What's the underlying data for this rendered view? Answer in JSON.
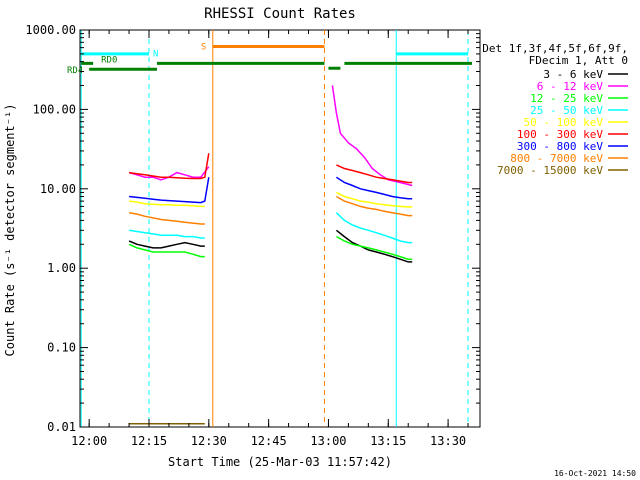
{
  "chart_data": {
    "type": "line",
    "title": "RHESSI Count Rates",
    "xlabel": "Start Time (25-Mar-03 11:57:42)",
    "ylabel": "Count Rate (s⁻¹ detector segment⁻¹)",
    "y_scale": "log",
    "ylim": [
      0.01,
      1000
    ],
    "xlim": [
      "11:57:42",
      "13:38:00"
    ],
    "x_ticks": [
      "12:00",
      "12:15",
      "12:30",
      "12:45",
      "13:00",
      "13:15",
      "13:30"
    ],
    "y_ticks": [
      "0.01",
      "0.10",
      "1.00",
      "10.00",
      "100.00",
      "1000.00"
    ],
    "grid": false,
    "legend_placement": "right",
    "legend_header": [
      "Det 1f,3f,4f,5f,6f,9f,",
      "FDecim 1, Att 0"
    ],
    "footer_date": "16-Oct-2021 14:50",
    "series": [
      {
        "name": "3 - 6 keV",
        "color": "#000000",
        "segments": [
          {
            "x": [
              "12:10",
              "12:12",
              "12:14",
              "12:16",
              "12:18",
              "12:20",
              "12:22",
              "12:24",
              "12:26",
              "12:28",
              "12:29"
            ],
            "y": [
              2.2,
              2.0,
              1.9,
              1.8,
              1.8,
              1.9,
              2.0,
              2.1,
              2.0,
              1.9,
              1.9
            ]
          },
          {
            "x": [
              "13:02",
              "13:04",
              "13:06",
              "13:08",
              "13:10",
              "13:12",
              "13:14",
              "13:16",
              "13:18",
              "13:20",
              "13:21"
            ],
            "y": [
              3.0,
              2.5,
              2.1,
              1.9,
              1.7,
              1.6,
              1.5,
              1.4,
              1.3,
              1.2,
              1.2
            ]
          }
        ]
      },
      {
        "name": "6 - 12 keV",
        "color": "#ff00ff",
        "segments": [
          {
            "x": [
              "12:10",
              "12:12",
              "12:14",
              "12:16",
              "12:18",
              "12:20",
              "12:22",
              "12:24",
              "12:26",
              "12:28",
              "12:30"
            ],
            "y": [
              16,
              15,
              14,
              14,
              13,
              14,
              16,
              15,
              14,
              14,
              19
            ]
          },
          {
            "x": [
              "13:01",
              "13:02",
              "13:03",
              "13:05",
              "13:07",
              "13:09",
              "13:11",
              "13:13",
              "13:15",
              "13:18",
              "13:21"
            ],
            "y": [
              200,
              90,
              50,
              38,
              32,
              25,
              18,
              15,
              13,
              12,
              11
            ]
          }
        ]
      },
      {
        "name": "12 - 25 keV",
        "color": "#00ff00",
        "segments": [
          {
            "x": [
              "12:10",
              "12:12",
              "12:14",
              "12:16",
              "12:18",
              "12:20",
              "12:22",
              "12:24",
              "12:26",
              "12:28",
              "12:29"
            ],
            "y": [
              2.0,
              1.8,
              1.7,
              1.6,
              1.6,
              1.6,
              1.6,
              1.6,
              1.5,
              1.4,
              1.4
            ]
          },
          {
            "x": [
              "13:02",
              "13:04",
              "13:06",
              "13:08",
              "13:10",
              "13:12",
              "13:14",
              "13:16",
              "13:18",
              "13:20",
              "13:21"
            ],
            "y": [
              2.5,
              2.2,
              2.0,
              1.9,
              1.8,
              1.7,
              1.6,
              1.5,
              1.4,
              1.3,
              1.3
            ]
          }
        ]
      },
      {
        "name": "25 - 50 keV",
        "color": "#00ffff",
        "segments": [
          {
            "x": [
              "12:10",
              "12:12",
              "12:14",
              "12:16",
              "12:18",
              "12:20",
              "12:22",
              "12:24",
              "12:26",
              "12:28",
              "12:29"
            ],
            "y": [
              3.0,
              2.9,
              2.8,
              2.7,
              2.6,
              2.6,
              2.6,
              2.5,
              2.5,
              2.4,
              2.4
            ]
          },
          {
            "x": [
              "13:02",
              "13:04",
              "13:06",
              "13:08",
              "13:10",
              "13:12",
              "13:14",
              "13:16",
              "13:18",
              "13:20",
              "13:21"
            ],
            "y": [
              5.0,
              4.0,
              3.5,
              3.2,
              3.0,
              2.8,
              2.6,
              2.4,
              2.2,
              2.1,
              2.1
            ]
          }
        ]
      },
      {
        "name": "50 - 100 keV",
        "color": "#ffff00",
        "segments": [
          {
            "x": [
              "12:10",
              "12:12",
              "12:14",
              "12:16",
              "12:18",
              "12:20",
              "12:22",
              "12:24",
              "12:26",
              "12:28",
              "12:29"
            ],
            "y": [
              7,
              6.8,
              6.5,
              6.4,
              6.3,
              6.3,
              6.2,
              6.2,
              6.1,
              6.0,
              6.0
            ]
          },
          {
            "x": [
              "13:02",
              "13:04",
              "13:06",
              "13:08",
              "13:10",
              "13:12",
              "13:14",
              "13:16",
              "13:18",
              "13:20",
              "13:21"
            ],
            "y": [
              9,
              8,
              7.5,
              7,
              6.8,
              6.5,
              6.3,
              6.1,
              6.0,
              5.9,
              5.9
            ]
          }
        ]
      },
      {
        "name": "100 - 300 keV",
        "color": "#ff0000",
        "segments": [
          {
            "x": [
              "12:10",
              "12:12",
              "12:14",
              "12:16",
              "12:18",
              "12:20",
              "12:22",
              "12:24",
              "12:26",
              "12:28",
              "12:29",
              "12:30"
            ],
            "y": [
              16,
              15.5,
              15,
              14.5,
              14,
              14,
              13.8,
              13.6,
              13.5,
              13.5,
              14,
              28
            ]
          },
          {
            "x": [
              "13:02",
              "13:04",
              "13:06",
              "13:08",
              "13:10",
              "13:12",
              "13:14",
              "13:16",
              "13:18",
              "13:20",
              "13:21"
            ],
            "y": [
              20,
              18,
              17,
              16,
              15,
              14,
              13.5,
              13,
              12.5,
              12,
              12
            ]
          }
        ]
      },
      {
        "name": "300 - 800 keV",
        "color": "#0000ff",
        "segments": [
          {
            "x": [
              "12:10",
              "12:12",
              "12:14",
              "12:16",
              "12:18",
              "12:20",
              "12:22",
              "12:24",
              "12:26",
              "12:28",
              "12:29",
              "12:30"
            ],
            "y": [
              8,
              7.8,
              7.6,
              7.4,
              7.2,
              7.1,
              7.0,
              6.9,
              6.8,
              6.7,
              7.0,
              14
            ]
          },
          {
            "x": [
              "13:02",
              "13:04",
              "13:06",
              "13:08",
              "13:10",
              "13:12",
              "13:14",
              "13:16",
              "13:18",
              "13:20",
              "13:21"
            ],
            "y": [
              14,
              12,
              11,
              10,
              9.5,
              9,
              8.5,
              8,
              7.7,
              7.5,
              7.5
            ]
          }
        ]
      },
      {
        "name": "800 - 7000 keV",
        "color": "#ff8000",
        "segments": [
          {
            "x": [
              "12:10",
              "12:12",
              "12:14",
              "12:16",
              "12:18",
              "12:20",
              "12:22",
              "12:24",
              "12:26",
              "12:28",
              "12:29"
            ],
            "y": [
              5,
              4.8,
              4.5,
              4.3,
              4.1,
              4.0,
              3.9,
              3.8,
              3.7,
              3.6,
              3.6
            ]
          },
          {
            "x": [
              "13:02",
              "13:04",
              "13:06",
              "13:08",
              "13:10",
              "13:12",
              "13:14",
              "13:16",
              "13:18",
              "13:20",
              "13:21"
            ],
            "y": [
              8,
              7,
              6.5,
              6,
              5.7,
              5.5,
              5.2,
              5,
              4.8,
              4.6,
              4.6
            ]
          }
        ]
      },
      {
        "name": "7000 - 15000 keV",
        "color": "#806000",
        "segments": [
          {
            "x": [
              "12:10",
              "12:14",
              "12:18",
              "12:22",
              "12:26",
              "12:29"
            ],
            "y": [
              0.011,
              0.011,
              0.011,
              0.011,
              0.011,
              0.011
            ]
          }
        ]
      }
    ],
    "annotations": [
      {
        "text": "RD0",
        "color": "#008000"
      },
      {
        "text": "RD4",
        "color": "#008000"
      },
      {
        "text": "N",
        "color": "#00ffff"
      },
      {
        "text": "S",
        "color": "#ff8000"
      }
    ],
    "flag_bars": [
      {
        "label": "N",
        "color": "#00ffff",
        "x": [
          "11:58",
          "12:15"
        ],
        "y": 500
      },
      {
        "label": "N",
        "color": "#00ffff",
        "x": [
          "13:17",
          "13:35"
        ],
        "y": 500
      },
      {
        "label": "S",
        "color": "#ff8000",
        "x": [
          "12:31",
          "12:59"
        ],
        "y": 620
      },
      {
        "label": "RD0",
        "color": "#008000",
        "x": [
          "11:58",
          "12:01"
        ],
        "y": 380
      },
      {
        "label": "RD0",
        "color": "#008000",
        "x": [
          "12:17",
          "12:59"
        ],
        "y": 380
      },
      {
        "label": "RD0",
        "color": "#008000",
        "x": [
          "13:00",
          "13:03"
        ],
        "y": 330
      },
      {
        "label": "RD0",
        "color": "#008000",
        "x": [
          "13:04",
          "13:36"
        ],
        "y": 380
      },
      {
        "label": "RD4",
        "color": "#008000",
        "x": [
          "12:00",
          "12:17"
        ],
        "y": 320
      }
    ],
    "vertical_lines": [
      {
        "x": "11:58",
        "color": "#00ffff",
        "style": "solid"
      },
      {
        "x": "12:15",
        "color": "#00ffff",
        "style": "dashed"
      },
      {
        "x": "12:31",
        "color": "#ff8000",
        "style": "solid"
      },
      {
        "x": "12:59",
        "color": "#ff8000",
        "style": "dashed"
      },
      {
        "x": "13:17",
        "color": "#00ffff",
        "style": "solid"
      },
      {
        "x": "13:35",
        "color": "#00ffff",
        "style": "dashed"
      }
    ]
  }
}
